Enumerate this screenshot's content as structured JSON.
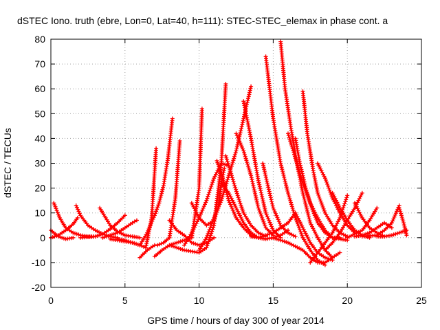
{
  "chart_data": {
    "type": "line",
    "title": "dSTEC Iono. truth (ebre, Lon=0, Lat=40, h=111): STEC-STEC_elemax in phase cont. a",
    "xlabel": "GPS time / hours of day 300 of year 2014",
    "ylabel": "dSTEC  / TECUs",
    "xlim": [
      0,
      25
    ],
    "ylim": [
      -20,
      80
    ],
    "x_ticks": [
      "0",
      "5",
      "10",
      "15",
      "20",
      "25"
    ],
    "y_ticks": [
      "-20",
      "-10",
      "0",
      "10",
      "20",
      "30",
      "40",
      "50",
      "60",
      "70",
      "80"
    ],
    "grid": true,
    "legend": "none",
    "series_color": "#ff0000",
    "marker": "plus",
    "series": [
      {
        "x": [
          0.0,
          0.5,
          1.0,
          1.5
        ],
        "y": [
          3,
          0.5,
          -0.5,
          0
        ]
      },
      {
        "x": [
          0.2,
          0.6,
          1.0,
          1.5,
          2.0,
          2.5,
          3.0
        ],
        "y": [
          14,
          8,
          4,
          2,
          1,
          0.5,
          0.5
        ]
      },
      {
        "x": [
          0.0,
          0.5,
          1.0,
          1.5,
          1.8
        ],
        "y": [
          0,
          1,
          3,
          5.5,
          8
        ]
      },
      {
        "x": [
          1.7,
          2.0,
          2.5,
          3.0,
          3.5,
          4.0,
          4.5
        ],
        "y": [
          13,
          9,
          5,
          3,
          1.5,
          0.5,
          0
        ]
      },
      {
        "x": [
          3.3,
          3.7,
          4.0,
          4.5,
          5.0,
          5.5,
          6.0
        ],
        "y": [
          12,
          8,
          5,
          2.5,
          1,
          0.5,
          0
        ]
      },
      {
        "x": [
          2.0,
          3.0,
          3.5,
          4.0,
          4.5,
          5.0
        ],
        "y": [
          0,
          0.5,
          1.5,
          3.5,
          6,
          9
        ]
      },
      {
        "x": [
          3.5,
          4.0,
          4.5,
          5.0,
          5.5,
          5.8
        ],
        "y": [
          0,
          1,
          2,
          4,
          6,
          7
        ]
      },
      {
        "x": [
          4.0,
          4.5,
          5.0,
          5.5,
          6.0,
          6.4,
          6.8,
          7.1
        ],
        "y": [
          -0.5,
          -1,
          -1.5,
          -2,
          -3,
          -4,
          8,
          36
        ]
      },
      {
        "x": [
          4.5,
          5.0,
          5.5,
          6.0,
          6.5,
          7.0,
          7.3,
          7.6,
          7.9,
          8.2
        ],
        "y": [
          -0.5,
          -1,
          -2,
          -3,
          2,
          9,
          14,
          21,
          32,
          48
        ]
      },
      {
        "x": [
          6.0,
          6.5,
          7.0,
          7.2,
          7.6,
          8.0,
          8.4,
          8.7
        ],
        "y": [
          -8,
          -5,
          -3,
          -3,
          -2,
          0,
          16,
          39
        ]
      },
      {
        "x": [
          7.0,
          7.5,
          8.0,
          8.5,
          9.0,
          9.5,
          10.0,
          10.2
        ],
        "y": [
          -7.5,
          -5,
          -3,
          -2,
          -1,
          0,
          20,
          52
        ]
      },
      {
        "x": [
          8.0,
          8.5,
          9.0,
          9.5,
          10.0,
          10.5,
          11.0
        ],
        "y": [
          7,
          3,
          1,
          -2,
          -3,
          -2,
          0
        ]
      },
      {
        "x": [
          8.0,
          9.0,
          10.0,
          10.5,
          11.0,
          11.5,
          11.8
        ],
        "y": [
          -3,
          -5,
          -6,
          -4,
          5,
          30,
          62
        ]
      },
      {
        "x": [
          9.0,
          9.5,
          10.0,
          10.5,
          11.0,
          11.5,
          12.0
        ],
        "y": [
          -3,
          2,
          8,
          15,
          24,
          30,
          29
        ]
      },
      {
        "x": [
          9.5,
          10.0,
          10.5,
          11.0,
          11.3,
          11.5,
          11.7
        ],
        "y": [
          14,
          8,
          5,
          7,
          12,
          22,
          28
        ]
      },
      {
        "x": [
          10.0,
          10.5,
          11.0,
          11.5,
          12.0,
          12.5,
          13.0,
          13.5
        ],
        "y": [
          -5,
          0,
          8,
          15,
          25,
          35,
          48,
          61
        ]
      },
      {
        "x": [
          11.2,
          11.6,
          12.0,
          12.5,
          13.0,
          13.5,
          14.0
        ],
        "y": [
          31,
          24,
          15,
          8,
          4,
          1,
          0
        ]
      },
      {
        "x": [
          11.8,
          12.2,
          12.6,
          13.0,
          13.5,
          14.0,
          14.5
        ],
        "y": [
          33,
          25,
          17,
          10,
          5,
          2,
          0.5
        ]
      },
      {
        "x": [
          11.5,
          12.0,
          12.5,
          13.0,
          13.5,
          14.0
        ],
        "y": [
          22,
          18,
          12,
          6,
          2,
          0
        ]
      },
      {
        "x": [
          12.5,
          13.0,
          13.5,
          14.0,
          14.5,
          15.0
        ],
        "y": [
          42,
          35,
          25,
          12,
          4,
          1
        ]
      },
      {
        "x": [
          13.0,
          13.5,
          14.0,
          14.5,
          15.0,
          15.5
        ],
        "y": [
          55,
          40,
          23,
          10,
          3,
          0
        ]
      },
      {
        "x": [
          14.3,
          14.6,
          15.0,
          15.5,
          16.0,
          16.5
        ],
        "y": [
          30,
          22,
          12,
          5,
          2,
          0.5
        ]
      },
      {
        "x": [
          14.5,
          15.0,
          15.5,
          16.0,
          16.5,
          17.0,
          17.5,
          18.0,
          18.5
        ],
        "y": [
          73,
          48,
          30,
          18,
          8,
          0,
          -5,
          -9,
          -11
        ]
      },
      {
        "x": [
          15.5,
          15.8,
          16.2,
          16.6,
          17.0,
          17.5,
          18.0,
          18.5,
          19.0
        ],
        "y": [
          79,
          60,
          44,
          30,
          18,
          6,
          0,
          -5,
          -8
        ]
      },
      {
        "x": [
          16.0,
          16.5,
          17.0,
          17.5,
          18.0,
          18.5,
          19.0,
          19.5
        ],
        "y": [
          42,
          32,
          22,
          14,
          8,
          3,
          0,
          0
        ]
      },
      {
        "x": [
          16.5,
          16.8,
          17.2,
          17.6,
          18.0,
          18.5,
          19.0,
          20.0
        ],
        "y": [
          40,
          30,
          20,
          12,
          6,
          2,
          0,
          -1
        ]
      },
      {
        "x": [
          17.0,
          17.3,
          17.7,
          18.0,
          18.5,
          19.0,
          19.5,
          20.0
        ],
        "y": [
          59,
          42,
          27,
          18,
          10,
          5,
          2,
          0.5
        ]
      },
      {
        "x": [
          18.0,
          18.5,
          19.0,
          19.5,
          20.0,
          20.5
        ],
        "y": [
          30,
          24,
          16,
          10,
          5,
          2
        ]
      },
      {
        "x": [
          15.0,
          16.0,
          17.0,
          17.5,
          18.0,
          18.5,
          19.0,
          19.5
        ],
        "y": [
          0,
          -2,
          -5,
          -8,
          -10,
          -10,
          -8,
          -6
        ]
      },
      {
        "x": [
          14.0,
          15.0,
          16.0,
          16.5,
          17.0,
          17.5,
          18.0,
          18.5,
          19.0
        ],
        "y": [
          0,
          2,
          6,
          10,
          4,
          -2,
          -6,
          -8,
          -9
        ]
      },
      {
        "x": [
          17.5,
          18.0,
          18.5,
          19.0,
          19.5,
          20.0
        ],
        "y": [
          -10,
          -6,
          -2,
          2,
          8,
          17
        ]
      },
      {
        "x": [
          18.5,
          19.0,
          19.5,
          20.0,
          20.5,
          21.0
        ],
        "y": [
          -5,
          -2,
          2,
          7,
          12,
          18
        ]
      },
      {
        "x": [
          19.0,
          19.5,
          20.0,
          20.5,
          21.0,
          21.5
        ],
        "y": [
          18,
          12,
          7,
          3,
          1,
          0
        ]
      },
      {
        "x": [
          20.5,
          21.0,
          21.5,
          22.0,
          22.5
        ],
        "y": [
          14,
          8,
          4,
          2,
          0.5
        ]
      },
      {
        "x": [
          20.0,
          21.0,
          21.5,
          22.0
        ],
        "y": [
          0,
          3,
          7,
          12
        ]
      },
      {
        "x": [
          20.5,
          21.0,
          21.5,
          22.0,
          22.5,
          23.0
        ],
        "y": [
          0.5,
          1,
          2,
          4,
          6,
          4
        ]
      },
      {
        "x": [
          21.0,
          22.0,
          22.5,
          23.0,
          23.5
        ],
        "y": [
          0.5,
          1,
          3,
          6,
          13
        ]
      },
      {
        "x": [
          22.0,
          22.5,
          23.0,
          23.5,
          24.0
        ],
        "y": [
          0.5,
          0.5,
          1,
          2,
          3
        ]
      },
      {
        "x": [
          23.5,
          23.8,
          24.0
        ],
        "y": [
          12,
          6,
          1
        ]
      },
      {
        "x": [
          13.5,
          14.0,
          14.5,
          15.0,
          15.5,
          16.0
        ],
        "y": [
          0.5,
          0,
          -0.5,
          0,
          1,
          3
        ]
      }
    ]
  }
}
